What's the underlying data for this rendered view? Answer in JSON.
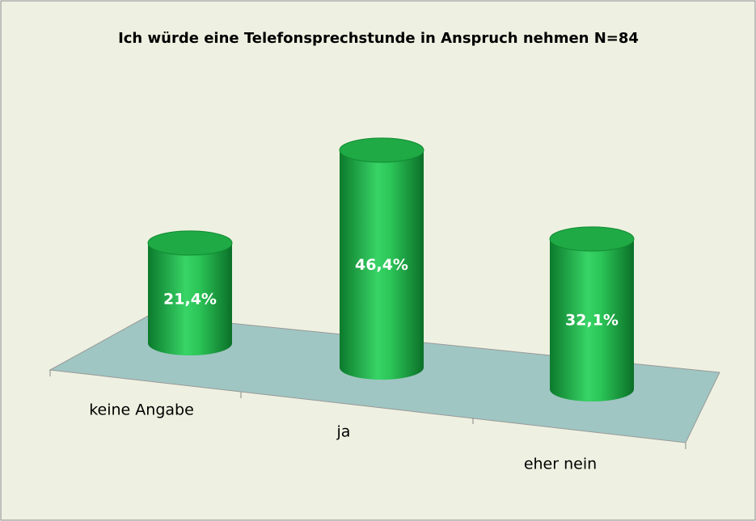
{
  "chart_data": {
    "type": "bar",
    "title": "Ich würde eine Telefonsprechstunde in Anspruch nehmen N=84",
    "categories": [
      "keine Angabe",
      "ja",
      "eher nein"
    ],
    "values": [
      21.4,
      46.4,
      32.1
    ],
    "value_labels": [
      "21,4%",
      "46,4%",
      "32,1%"
    ],
    "color": "#1faa45"
  }
}
